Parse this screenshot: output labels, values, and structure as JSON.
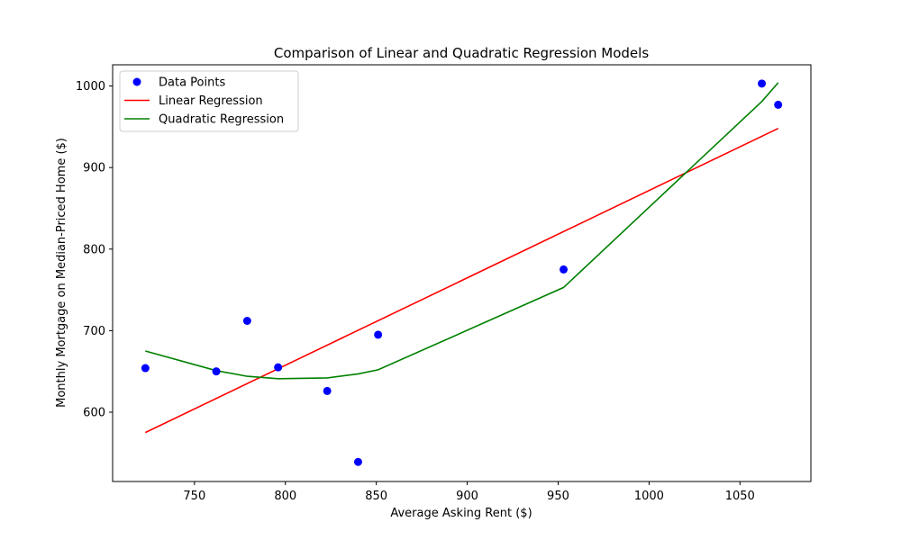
{
  "chart_data": {
    "type": "scatter",
    "title": "Comparison of Linear and Quadratic Regression Models",
    "xlabel": "Average Asking Rent ($)",
    "ylabel": "Monthly Mortgage on Median-Priced Home ($)",
    "xlim": [
      705,
      1089
    ],
    "ylim": [
      515,
      1026
    ],
    "xticks": [
      750,
      800,
      850,
      900,
      950,
      1000,
      1050
    ],
    "yticks": [
      600,
      700,
      800,
      900,
      1000
    ],
    "grid": false,
    "legend_position": "top-left",
    "series": [
      {
        "name": "Data Points",
        "kind": "scatter",
        "color": "#0000ff",
        "points": [
          [
            723,
            654
          ],
          [
            762,
            650
          ],
          [
            779,
            712
          ],
          [
            796,
            655
          ],
          [
            823,
            626
          ],
          [
            840,
            539
          ],
          [
            851,
            695
          ],
          [
            953,
            775
          ],
          [
            1062,
            1003
          ],
          [
            1071,
            977
          ]
        ]
      },
      {
        "name": "Linear Regression",
        "kind": "line",
        "color": "#ff0000",
        "points": [
          [
            723,
            575
          ],
          [
            1071,
            948
          ]
        ]
      },
      {
        "name": "Quadratic Regression",
        "kind": "line",
        "color": "#008000",
        "points": [
          [
            723,
            675
          ],
          [
            762,
            651
          ],
          [
            779,
            644
          ],
          [
            796,
            641
          ],
          [
            823,
            642
          ],
          [
            840,
            647
          ],
          [
            851,
            652
          ],
          [
            953,
            753
          ],
          [
            1062,
            981
          ],
          [
            1071,
            1004
          ]
        ]
      }
    ]
  }
}
